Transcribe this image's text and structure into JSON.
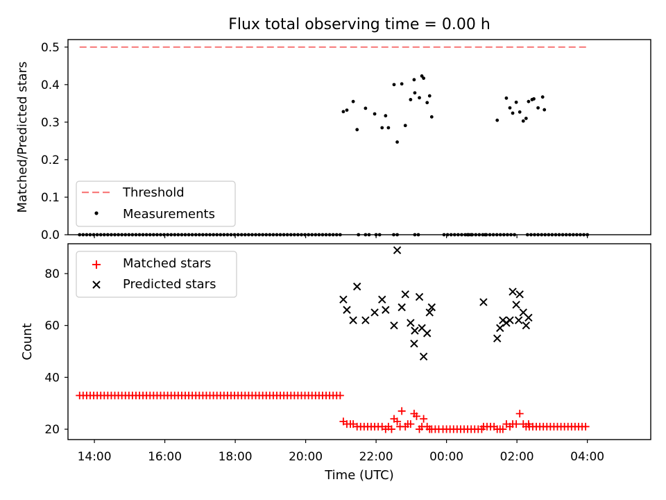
{
  "figure": {
    "title": "Flux total observing time = 0.00 h"
  },
  "chart_data": [
    {
      "type": "scatter",
      "ylabel": "Matched/Predicted stars",
      "xlabel": "",
      "xlim": [
        -0.75,
        15.8
      ],
      "ylim": [
        0,
        0.52
      ],
      "yticks": [
        0.0,
        0.1,
        0.2,
        0.3,
        0.4,
        0.5
      ],
      "ytick_labels": [
        "0.0",
        "0.1",
        "0.2",
        "0.3",
        "0.4",
        "0.5"
      ],
      "xticks": [
        0,
        2,
        4,
        6,
        8,
        10,
        12,
        14
      ],
      "legend_position": "lower-left",
      "threshold": {
        "name": "Threshold",
        "value": 0.5,
        "x": [
          -0.42,
          14.0
        ],
        "color": "#f87d7d"
      },
      "measurements": {
        "name": "Measurements",
        "color": "#000000",
        "zero_runs": [
          {
            "from": -0.42,
            "to": 7.0,
            "step": 0.1
          },
          {
            "from": 9.93,
            "to": 12.0,
            "step": 0.1
          },
          {
            "from": 12.3,
            "to": 14.0,
            "step": 0.1
          }
        ],
        "zero_points": [
          7.5,
          7.7,
          7.8,
          8.0,
          8.1,
          8.5,
          8.6,
          9.1,
          9.2,
          10.6,
          10.7,
          11.1
        ],
        "x": [
          7.07,
          7.17,
          7.35,
          7.46,
          7.7,
          7.96,
          8.17,
          8.27,
          8.35,
          8.51,
          8.6,
          8.73,
          8.83,
          8.98,
          9.08,
          9.1,
          9.23,
          9.3,
          9.35,
          9.45,
          9.52,
          9.58,
          11.44,
          11.7,
          11.8,
          11.88,
          11.98,
          12.08,
          12.18,
          12.26,
          12.33,
          12.43,
          12.48,
          12.6,
          12.73,
          12.78
        ],
        "y": [
          0.328,
          0.332,
          0.355,
          0.28,
          0.337,
          0.322,
          0.285,
          0.317,
          0.285,
          0.4,
          0.247,
          0.402,
          0.291,
          0.36,
          0.413,
          0.378,
          0.365,
          0.423,
          0.417,
          0.352,
          0.37,
          0.314,
          0.305,
          0.364,
          0.338,
          0.324,
          0.353,
          0.327,
          0.303,
          0.31,
          0.355,
          0.36,
          0.362,
          0.338,
          0.367,
          0.333
        ]
      }
    },
    {
      "type": "scatter",
      "ylabel": "Count",
      "xlabel": "Time (UTC)",
      "xlim": [
        -0.75,
        15.8
      ],
      "ylim": [
        16,
        91.5
      ],
      "yticks": [
        20,
        40,
        60,
        80
      ],
      "ytick_labels": [
        "20",
        "40",
        "60",
        "80"
      ],
      "xticks": [
        0,
        2,
        4,
        6,
        8,
        10,
        12,
        14
      ],
      "xtick_labels": [
        "14:00",
        "16:00",
        "18:00",
        "20:00",
        "22:00",
        "00:00",
        "02:00",
        "04:00"
      ],
      "legend_position": "upper-left",
      "matched": {
        "name": "Matched stars",
        "color": "#ff0000",
        "runs": [
          {
            "from": -0.42,
            "to": 7.0,
            "step": 0.1,
            "value": 33
          },
          {
            "from": 9.9,
            "to": 11.0,
            "step": 0.1,
            "value": 20
          },
          {
            "from": 12.35,
            "to": 14.0,
            "step": 0.1,
            "value": 21
          }
        ],
        "x": [
          7.07,
          7.17,
          7.27,
          7.35,
          7.46,
          7.56,
          7.66,
          7.76,
          7.86,
          7.96,
          8.06,
          8.17,
          8.27,
          8.35,
          8.44,
          8.51,
          8.6,
          8.68,
          8.73,
          8.83,
          8.9,
          8.98,
          9.08,
          9.15,
          9.23,
          9.3,
          9.35,
          9.45,
          9.52,
          9.58,
          9.68,
          9.78,
          11.05,
          11.15,
          11.25,
          11.35,
          11.44,
          11.52,
          11.6,
          11.7,
          11.8,
          11.88,
          11.98,
          12.08,
          12.18,
          12.26,
          12.33
        ],
        "y": [
          23,
          22,
          22,
          22,
          21,
          21,
          21,
          21,
          21,
          21,
          21,
          21,
          20,
          21,
          20,
          24,
          23,
          21,
          27,
          21,
          22,
          22,
          26,
          25,
          20,
          21,
          24,
          21,
          20,
          20,
          20,
          20,
          21,
          21,
          21,
          21,
          20,
          20,
          20,
          22,
          21,
          22,
          22,
          26,
          22,
          21,
          22
        ]
      },
      "predicted": {
        "name": "Predicted stars",
        "color": "#000000",
        "x": [
          7.07,
          7.17,
          7.35,
          7.46,
          7.7,
          7.96,
          8.17,
          8.27,
          8.51,
          8.6,
          8.73,
          8.83,
          8.98,
          9.08,
          9.1,
          9.23,
          9.3,
          9.35,
          9.45,
          9.52,
          9.58,
          11.05,
          11.44,
          11.52,
          11.6,
          11.7,
          11.8,
          11.88,
          11.98,
          12.05,
          12.08,
          12.18,
          12.26,
          12.33
        ],
        "y": [
          70,
          66,
          62,
          75,
          62,
          65,
          70,
          66,
          60,
          89,
          67,
          72,
          61,
          53,
          58,
          71,
          59,
          48,
          57,
          65,
          67,
          69,
          55,
          59,
          62,
          61,
          62,
          73,
          68,
          62,
          72,
          65,
          60,
          63
        ]
      }
    }
  ]
}
